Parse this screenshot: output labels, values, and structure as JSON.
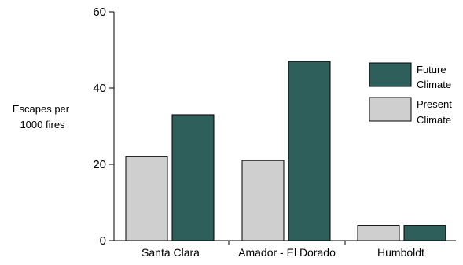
{
  "chart_data": {
    "type": "bar",
    "title": "",
    "xlabel": "",
    "ylabel": [
      "Escapes per",
      "1000 fires"
    ],
    "categories": [
      "Santa Clara",
      "Amador - El Dorado",
      "Humboldt"
    ],
    "series": [
      {
        "name": "Present Climate",
        "legend_lines": [
          "Present",
          "Climate"
        ],
        "values": [
          22,
          21,
          4
        ],
        "color": "#cfcfcf"
      },
      {
        "name": "Future Climate",
        "legend_lines": [
          "Future",
          "Climate"
        ],
        "values": [
          33,
          47,
          4
        ],
        "color": "#2e5f5a"
      }
    ],
    "ylim": [
      0,
      60
    ],
    "yticks": [
      0,
      20,
      40,
      60
    ],
    "grid": false,
    "legend_position": "right"
  }
}
